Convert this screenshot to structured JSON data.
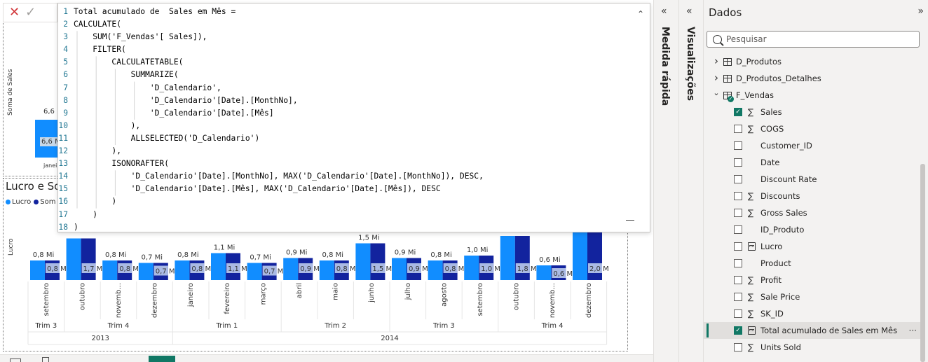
{
  "editor": {
    "lines": [
      "Total acumulado de  Sales em Mês =",
      "CALCULATE(",
      "    SUM('F_Vendas'[ Sales]),",
      "    FILTER(",
      "        CALCULATETABLE(",
      "            SUMMARIZE(",
      "                'D_Calendario',",
      "                'D_Calendario'[Date].[MonthNo],",
      "                'D_Calendario'[Date].[Mês]",
      "            ),",
      "            ALLSELECTED('D_Calendario')",
      "        ),",
      "        ISONORAFTER(",
      "            'D_Calendario'[Date].[MonthNo], MAX('D_Calendario'[Date].[MonthNo]), DESC,",
      "            'D_Calendario'[Date].[Mês], MAX('D_Calendario'[Date].[Mês]), DESC",
      "        )",
      "    )",
      ")"
    ],
    "line_numbers": [
      "1",
      "2",
      "3",
      "4",
      "5",
      "6",
      "7",
      "8",
      "9",
      "10",
      "11",
      "12",
      "13",
      "14",
      "15",
      "16",
      "17",
      "18"
    ],
    "cancel_icon": "✕",
    "commit_icon": "✓",
    "collapse_icon": "⌃"
  },
  "small_chart": {
    "ylabel": "Soma de Sales",
    "data_label": "6,6 M",
    "bar_label": "6,6 M",
    "axis_label": "janei"
  },
  "main_chart_header": {
    "title": "Lucro e So",
    "legend": [
      {
        "label": "Lucro",
        "color": "#118DFF"
      },
      {
        "label": "Som",
        "color": "#12239E"
      }
    ]
  },
  "chart_data": {
    "type": "bar",
    "title": "Lucro e So",
    "ylabel": "Lucro",
    "categories": [
      "setembro",
      "outubro",
      "novemb...",
      "dezembro",
      "janeiro",
      "fevereiro",
      "março",
      "abril",
      "maio",
      "junho",
      "julho",
      "agosto",
      "setembro",
      "outubro",
      "novemb...",
      "dezembro"
    ],
    "quarters": [
      {
        "label": "Trim 3",
        "span": 1
      },
      {
        "label": "Trim 4",
        "span": 3
      },
      {
        "label": "Trim 1",
        "span": 3
      },
      {
        "label": "Trim 2",
        "span": 3
      },
      {
        "label": "Trim 3",
        "span": 3
      },
      {
        "label": "Trim 4",
        "span": 3
      }
    ],
    "years": [
      {
        "label": "2013",
        "span": 4
      },
      {
        "label": "2014",
        "span": 12
      }
    ],
    "series": [
      {
        "name": "Lucro",
        "color": "#118DFF",
        "values": [
          0.8,
          1.7,
          0.8,
          0.7,
          0.8,
          1.1,
          0.7,
          0.9,
          0.8,
          1.5,
          0.9,
          0.8,
          1.0,
          1.8,
          0.6,
          2.0
        ],
        "labels": [
          "0,8 Mi",
          "",
          "0,8 Mi",
          "0,7 Mi",
          "0,8 Mi",
          "1,1 Mi",
          "0,7 Mi",
          "0,9 Mi",
          "0,8 Mi",
          "1,5 Mi",
          "0,9 Mi",
          "0,8 Mi",
          "1,0 Mi",
          "",
          "0,6 Mi",
          ""
        ]
      },
      {
        "name": "Som",
        "color": "#12239E",
        "values": [
          0.8,
          1.7,
          0.8,
          0.7,
          0.8,
          1.1,
          0.7,
          0.9,
          0.8,
          1.5,
          0.9,
          0.8,
          1.0,
          1.8,
          0.6,
          2.0
        ],
        "labels": [
          "0,8 M",
          "1,7 M",
          "0,8 M",
          "0,7 M",
          "0,8 M",
          "1,1 M",
          "0,7 M",
          "0,9 M",
          "0,8 M",
          "1,5 M",
          "0,9 M",
          "0,8 M",
          "1,0 M",
          "1,8 M",
          "0,6 M",
          "2,0 M"
        ]
      }
    ]
  },
  "panes": {
    "medida_rapida": "Medida rápida",
    "visualizacoes": "Visualizações",
    "collapse_icon": "«"
  },
  "dados": {
    "title": "Dados",
    "expand_icon": "»",
    "search_placeholder": "Pesquisar",
    "tables": [
      {
        "label": "D_Produtos",
        "expanded": false
      },
      {
        "label": "D_Produtos_Detalhes",
        "expanded": false
      },
      {
        "label": "F_Vendas",
        "expanded": true
      }
    ],
    "fields": [
      {
        "label": "Sales",
        "checked": true,
        "icon": "sigma"
      },
      {
        "label": "COGS",
        "checked": false,
        "icon": "sigma"
      },
      {
        "label": "Customer_ID",
        "checked": false,
        "icon": "none"
      },
      {
        "label": "Date",
        "checked": false,
        "icon": "none"
      },
      {
        "label": "Discount Rate",
        "checked": false,
        "icon": "none"
      },
      {
        "label": "Discounts",
        "checked": false,
        "icon": "sigma"
      },
      {
        "label": "Gross Sales",
        "checked": false,
        "icon": "sigma"
      },
      {
        "label": "ID_Produto",
        "checked": false,
        "icon": "none"
      },
      {
        "label": "Lucro",
        "checked": false,
        "icon": "calc"
      },
      {
        "label": "Product",
        "checked": false,
        "icon": "none"
      },
      {
        "label": "Profit",
        "checked": false,
        "icon": "sigma"
      },
      {
        "label": "Sale Price",
        "checked": false,
        "icon": "sigma"
      },
      {
        "label": "SK_ID",
        "checked": false,
        "icon": "sigma"
      },
      {
        "label": "Total acumulado de Sales em Mês",
        "checked": true,
        "icon": "calc",
        "selected": true
      },
      {
        "label": "Units Sold",
        "checked": false,
        "icon": "sigma"
      }
    ],
    "more_icon": "···"
  }
}
